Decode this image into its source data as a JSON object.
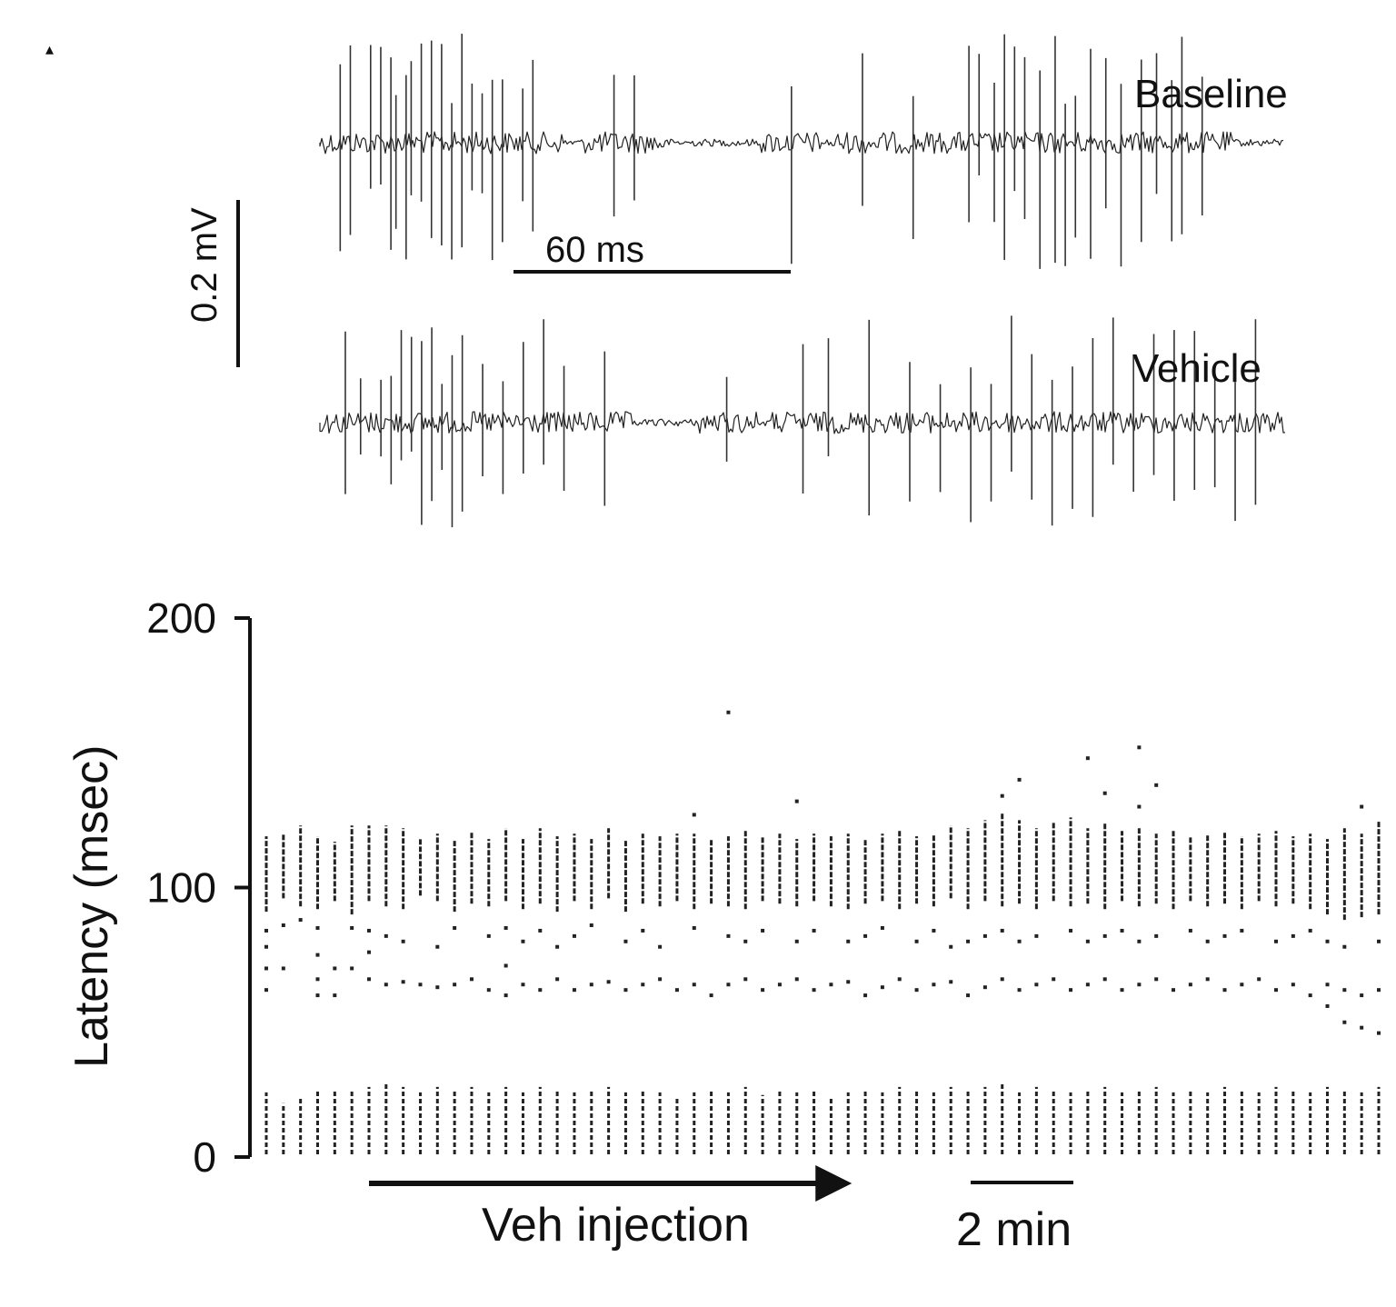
{
  "panel_marker": "▴",
  "traces": [
    {
      "label": "Baseline",
      "color": "#222222",
      "spike_color": "#333333",
      "spike_times_ms": [
        4,
        6,
        10,
        12,
        14,
        15,
        17,
        18,
        20,
        22,
        24,
        26,
        28,
        30,
        32,
        34,
        36,
        40,
        42,
        58,
        62,
        93,
        107,
        117,
        128,
        130,
        133,
        135,
        137,
        139,
        142,
        145,
        147,
        149,
        152,
        155,
        158,
        162,
        165,
        168,
        170,
        174
      ]
    },
    {
      "label": "Vehicle",
      "color": "#222222",
      "spike_color": "#333333",
      "spike_times_ms": [
        5,
        8,
        12,
        14,
        16,
        18,
        20,
        22,
        24,
        26,
        28,
        32,
        36,
        40,
        44,
        48,
        56,
        80,
        95,
        100,
        108,
        116,
        122,
        128,
        132,
        136,
        140,
        144,
        148,
        152,
        156,
        160,
        164,
        168,
        172,
        176,
        180,
        184
      ]
    }
  ],
  "scale_bars": {
    "voltage": "0.2 mV",
    "time_trace": "60 ms",
    "time_raster": "2 min"
  },
  "annotation": {
    "label": "Veh injection"
  },
  "chart_data": {
    "type": "scatter",
    "title": "",
    "xlabel": "",
    "ylabel": "Latency (msec)",
    "ylim": [
      0,
      200
    ],
    "yticks": [
      0,
      100,
      200
    ],
    "x_unit": "sweep",
    "grid": false,
    "legend": "none",
    "injection_start_sweep": 7,
    "injection_end_sweep": 35,
    "scale_bar_sweeps": 6,
    "marker_color": "#222222",
    "sweeps": [
      {
        "x": 1,
        "early": [
          1,
          24
        ],
        "late": [
          91,
          119
        ],
        "scattered": [
          62,
          70,
          78,
          84
        ]
      },
      {
        "x": 2,
        "early": [
          1,
          20
        ],
        "late": [
          96,
          120
        ],
        "scattered": [
          70,
          86
        ]
      },
      {
        "x": 3,
        "early": [
          1,
          22
        ],
        "late": [
          93,
          123
        ],
        "scattered": [
          88
        ]
      },
      {
        "x": 4,
        "early": [
          1,
          25
        ],
        "late": [
          92,
          119
        ],
        "scattered": [
          60,
          66,
          75,
          85
        ]
      },
      {
        "x": 5,
        "early": [
          1,
          25
        ],
        "late": [
          95,
          117
        ],
        "scattered": [
          60,
          70
        ]
      },
      {
        "x": 6,
        "early": [
          1,
          25
        ],
        "late": [
          90,
          123
        ],
        "scattered": [
          70,
          85
        ]
      },
      {
        "x": 7,
        "early": [
          1,
          26
        ],
        "late": [
          95,
          123
        ],
        "scattered": [
          66,
          76,
          84
        ]
      },
      {
        "x": 8,
        "early": [
          1,
          27
        ],
        "late": [
          93,
          123
        ],
        "scattered": [
          64,
          82
        ]
      },
      {
        "x": 9,
        "early": [
          1,
          26
        ],
        "late": [
          92,
          122
        ],
        "scattered": [
          65,
          80
        ]
      },
      {
        "x": 10,
        "early": [
          1,
          24
        ],
        "late": [
          97,
          118
        ],
        "scattered": [
          64
        ]
      },
      {
        "x": 11,
        "early": [
          1,
          26
        ],
        "late": [
          95,
          120
        ],
        "scattered": [
          63,
          78
        ]
      },
      {
        "x": 12,
        "early": [
          1,
          25
        ],
        "late": [
          91,
          118
        ],
        "scattered": [
          64,
          85
        ]
      },
      {
        "x": 13,
        "early": [
          1,
          26
        ],
        "late": [
          94,
          121
        ],
        "scattered": [
          66
        ]
      },
      {
        "x": 14,
        "early": [
          1,
          24
        ],
        "late": [
          93,
          118
        ],
        "scattered": [
          62,
          82
        ]
      },
      {
        "x": 15,
        "early": [
          1,
          26
        ],
        "late": [
          95,
          122
        ],
        "scattered": [
          60,
          71,
          85
        ]
      },
      {
        "x": 16,
        "early": [
          1,
          24
        ],
        "late": [
          92,
          118
        ],
        "scattered": [
          64,
          80
        ]
      },
      {
        "x": 17,
        "early": [
          1,
          26
        ],
        "late": [
          94,
          122
        ],
        "scattered": [
          62,
          84
        ]
      },
      {
        "x": 18,
        "early": [
          1,
          25
        ],
        "late": [
          91,
          119
        ],
        "scattered": [
          66,
          78
        ]
      },
      {
        "x": 19,
        "early": [
          1,
          24
        ],
        "late": [
          95,
          120
        ],
        "scattered": [
          62,
          82
        ]
      },
      {
        "x": 20,
        "early": [
          1,
          25
        ],
        "late": [
          92,
          118
        ],
        "scattered": [
          64,
          86
        ]
      },
      {
        "x": 21,
        "early": [
          1,
          26
        ],
        "late": [
          96,
          122
        ],
        "scattered": [
          65
        ]
      },
      {
        "x": 22,
        "early": [
          1,
          24
        ],
        "late": [
          91,
          118
        ],
        "scattered": [
          62,
          80
        ]
      },
      {
        "x": 23,
        "early": [
          1,
          25
        ],
        "late": [
          94,
          120
        ],
        "scattered": [
          64,
          84
        ]
      },
      {
        "x": 24,
        "early": [
          1,
          24
        ],
        "late": [
          93,
          119
        ],
        "scattered": [
          66,
          78
        ]
      },
      {
        "x": 25,
        "early": [
          1,
          22
        ],
        "late": [
          95,
          120
        ],
        "scattered": [
          62
        ]
      },
      {
        "x": 26,
        "early": [
          1,
          24
        ],
        "late": [
          92,
          120
        ],
        "scattered": [
          64,
          85,
          127
        ]
      },
      {
        "x": 27,
        "early": [
          1,
          25
        ],
        "late": [
          94,
          118
        ],
        "scattered": [
          60
        ]
      },
      {
        "x": 28,
        "early": [
          1,
          24
        ],
        "late": [
          93,
          119
        ],
        "scattered": [
          64,
          82,
          165
        ]
      },
      {
        "x": 29,
        "early": [
          1,
          26
        ],
        "late": [
          92,
          121
        ],
        "scattered": [
          66,
          80
        ]
      },
      {
        "x": 30,
        "early": [
          1,
          23
        ],
        "late": [
          95,
          119
        ],
        "scattered": [
          62,
          84
        ]
      },
      {
        "x": 31,
        "early": [
          1,
          25
        ],
        "late": [
          94,
          120
        ],
        "scattered": [
          64
        ]
      },
      {
        "x": 32,
        "early": [
          1,
          24
        ],
        "late": [
          93,
          118
        ],
        "scattered": [
          66,
          80,
          132
        ]
      },
      {
        "x": 33,
        "early": [
          1,
          25
        ],
        "late": [
          95,
          120
        ],
        "scattered": [
          62,
          84
        ]
      },
      {
        "x": 34,
        "early": [
          1,
          22
        ],
        "late": [
          93,
          119
        ],
        "scattered": [
          64
        ]
      },
      {
        "x": 35,
        "early": [
          1,
          24
        ],
        "late": [
          92,
          120
        ],
        "scattered": [
          65,
          80
        ]
      },
      {
        "x": 36,
        "early": [
          1,
          25
        ],
        "late": [
          94,
          118
        ],
        "scattered": [
          60,
          82
        ]
      },
      {
        "x": 37,
        "early": [
          1,
          24
        ],
        "late": [
          95,
          120
        ],
        "scattered": [
          63,
          85
        ]
      },
      {
        "x": 38,
        "early": [
          1,
          26
        ],
        "late": [
          92,
          121
        ],
        "scattered": [
          66
        ]
      },
      {
        "x": 39,
        "early": [
          1,
          25
        ],
        "late": [
          94,
          119
        ],
        "scattered": [
          62,
          80
        ]
      },
      {
        "x": 40,
        "early": [
          1,
          24
        ],
        "late": [
          93,
          120
        ],
        "scattered": [
          64,
          84
        ]
      },
      {
        "x": 41,
        "early": [
          1,
          26
        ],
        "late": [
          96,
          123
        ],
        "scattered": [
          65,
          78
        ]
      },
      {
        "x": 42,
        "early": [
          1,
          25
        ],
        "late": [
          92,
          122
        ],
        "scattered": [
          60,
          80
        ]
      },
      {
        "x": 43,
        "early": [
          1,
          26
        ],
        "late": [
          95,
          125
        ],
        "scattered": [
          63,
          82
        ]
      },
      {
        "x": 44,
        "early": [
          1,
          27
        ],
        "late": [
          93,
          128
        ],
        "scattered": [
          66,
          84,
          134
        ]
      },
      {
        "x": 45,
        "early": [
          1,
          24
        ],
        "late": [
          94,
          125
        ],
        "scattered": [
          62,
          80,
          140
        ]
      },
      {
        "x": 46,
        "early": [
          1,
          26
        ],
        "late": [
          92,
          122
        ],
        "scattered": [
          64,
          82
        ]
      },
      {
        "x": 47,
        "early": [
          1,
          25
        ],
        "late": [
          95,
          124
        ],
        "scattered": [
          66
        ]
      },
      {
        "x": 48,
        "early": [
          1,
          24
        ],
        "late": [
          93,
          126
        ],
        "scattered": [
          62,
          84
        ]
      },
      {
        "x": 49,
        "early": [
          1,
          25
        ],
        "late": [
          94,
          122
        ],
        "scattered": [
          64,
          80,
          148
        ]
      },
      {
        "x": 50,
        "early": [
          1,
          26
        ],
        "late": [
          92,
          124
        ],
        "scattered": [
          66,
          82,
          135
        ]
      },
      {
        "x": 51,
        "early": [
          1,
          24
        ],
        "late": [
          95,
          121
        ],
        "scattered": [
          62,
          84
        ]
      },
      {
        "x": 52,
        "early": [
          1,
          25
        ],
        "late": [
          93,
          122
        ],
        "scattered": [
          64,
          80,
          130,
          152
        ]
      },
      {
        "x": 53,
        "early": [
          1,
          26
        ],
        "late": [
          94,
          120
        ],
        "scattered": [
          66,
          82,
          138
        ]
      },
      {
        "x": 54,
        "early": [
          1,
          24
        ],
        "late": [
          92,
          121
        ],
        "scattered": [
          62
        ]
      },
      {
        "x": 55,
        "early": [
          1,
          25
        ],
        "late": [
          95,
          119
        ],
        "scattered": [
          64,
          84
        ]
      },
      {
        "x": 56,
        "early": [
          1,
          24
        ],
        "late": [
          93,
          120
        ],
        "scattered": [
          66,
          80
        ]
      },
      {
        "x": 57,
        "early": [
          1,
          26
        ],
        "late": [
          94,
          121
        ],
        "scattered": [
          62,
          82
        ]
      },
      {
        "x": 58,
        "early": [
          1,
          25
        ],
        "late": [
          92,
          119
        ],
        "scattered": [
          64,
          84
        ]
      },
      {
        "x": 59,
        "early": [
          1,
          24
        ],
        "late": [
          95,
          120
        ],
        "scattered": [
          66
        ]
      },
      {
        "x": 60,
        "early": [
          1,
          26
        ],
        "late": [
          93,
          121
        ],
        "scattered": [
          62,
          80
        ]
      },
      {
        "x": 61,
        "early": [
          1,
          25
        ],
        "late": [
          94,
          119
        ],
        "scattered": [
          64,
          82
        ]
      },
      {
        "x": 62,
        "early": [
          1,
          24
        ],
        "late": [
          92,
          120
        ],
        "scattered": [
          60,
          84
        ]
      },
      {
        "x": 63,
        "early": [
          1,
          26
        ],
        "late": [
          90,
          118
        ],
        "scattered": [
          56,
          64,
          80
        ]
      },
      {
        "x": 64,
        "early": [
          1,
          25
        ],
        "late": [
          88,
          122
        ],
        "scattered": [
          50,
          62,
          78
        ]
      },
      {
        "x": 65,
        "early": [
          1,
          24
        ],
        "late": [
          89,
          120
        ],
        "scattered": [
          48,
          60,
          130
        ]
      },
      {
        "x": 66,
        "early": [
          1,
          26
        ],
        "late": [
          90,
          125
        ],
        "scattered": [
          46,
          62,
          80
        ]
      }
    ]
  }
}
